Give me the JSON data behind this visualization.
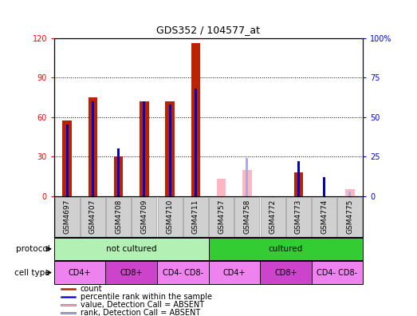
{
  "title": "GDS352 / 104577_at",
  "samples": [
    "GSM4697",
    "GSM4707",
    "GSM4708",
    "GSM4709",
    "GSM4710",
    "GSM4711",
    "GSM4757",
    "GSM4758",
    "GSM4772",
    "GSM4773",
    "GSM4774",
    "GSM4775"
  ],
  "red_values": [
    57,
    75,
    30,
    72,
    72,
    116,
    null,
    null,
    null,
    18,
    null,
    null
  ],
  "blue_values": [
    45,
    60,
    30,
    60,
    58,
    68,
    null,
    null,
    null,
    22,
    12,
    null
  ],
  "pink_values": [
    null,
    null,
    null,
    null,
    null,
    null,
    13,
    20,
    null,
    null,
    null,
    5
  ],
  "lightblue_values": [
    null,
    null,
    null,
    null,
    null,
    null,
    null,
    24,
    null,
    null,
    null,
    3
  ],
  "ylim_left": [
    0,
    120
  ],
  "ylim_right": [
    0,
    100
  ],
  "yticks_left": [
    0,
    30,
    60,
    90,
    120
  ],
  "yticks_right": [
    0,
    25,
    50,
    75,
    100
  ],
  "ytick_right_labels": [
    "0",
    "25",
    "50",
    "75",
    "100%"
  ],
  "protocol_groups": [
    {
      "label": "not cultured",
      "start": 0,
      "end": 6,
      "color": "#b3f0b3"
    },
    {
      "label": "cultured",
      "start": 6,
      "end": 12,
      "color": "#33cc33"
    }
  ],
  "cell_type_groups": [
    {
      "label": "CD4+",
      "start": 0,
      "end": 2,
      "color": "#ee82ee"
    },
    {
      "label": "CD8+",
      "start": 2,
      "end": 4,
      "color": "#cc44cc"
    },
    {
      "label": "CD4- CD8-",
      "start": 4,
      "end": 6,
      "color": "#ee82ee"
    },
    {
      "label": "CD4+",
      "start": 6,
      "end": 8,
      "color": "#ee82ee"
    },
    {
      "label": "CD8+",
      "start": 8,
      "end": 10,
      "color": "#cc44cc"
    },
    {
      "label": "CD4- CD8-",
      "start": 10,
      "end": 12,
      "color": "#ee82ee"
    }
  ],
  "red_color": "#bb2200",
  "blue_color": "#0000cc",
  "pink_color": "#ffb6c1",
  "lightblue_color": "#aaaadd",
  "background_color": "#ffffff",
  "grid_color": "#000000",
  "legend_items": [
    {
      "label": "count",
      "color": "#bb2200"
    },
    {
      "label": "percentile rank within the sample",
      "color": "#0000cc"
    },
    {
      "label": "value, Detection Call = ABSENT",
      "color": "#ffb6c1"
    },
    {
      "label": "rank, Detection Call = ABSENT",
      "color": "#aaaadd"
    }
  ]
}
